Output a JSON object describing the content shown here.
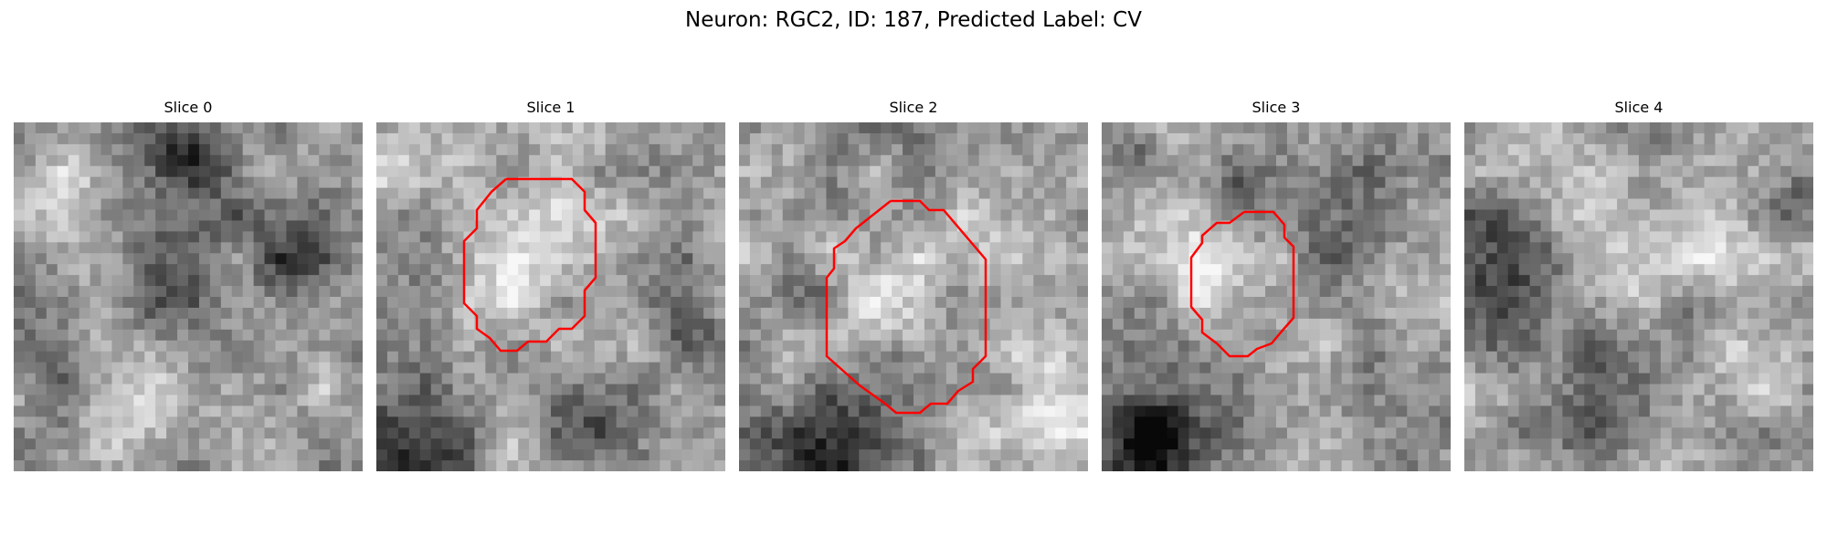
{
  "figure": {
    "title": "Neuron: RGC2, ID: 187, Predicted Label: CV"
  },
  "panels": [
    {
      "title": "Slice 0",
      "seed": 11,
      "has_contour": false
    },
    {
      "title": "Slice 1",
      "seed": 23,
      "has_contour": true
    },
    {
      "title": "Slice 2",
      "seed": 37,
      "has_contour": true
    },
    {
      "title": "Slice 3",
      "seed": 51,
      "has_contour": true
    },
    {
      "title": "Slice 4",
      "seed": 73,
      "has_contour": false
    }
  ],
  "colors": {
    "contour": "#ff0000",
    "background": "#ffffff"
  },
  "colormap": "gray"
}
